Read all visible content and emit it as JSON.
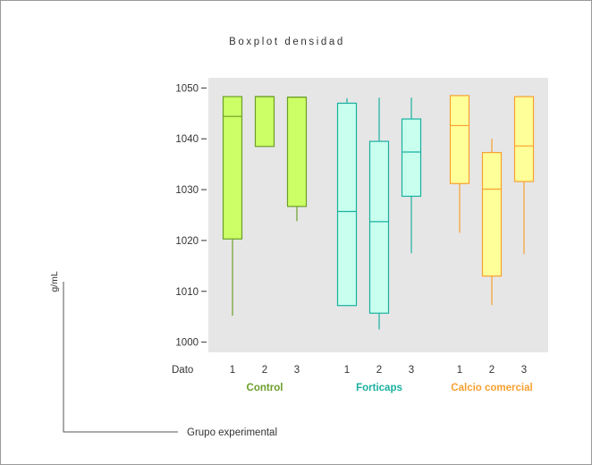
{
  "chart_data": {
    "type": "boxplot",
    "title": "Boxplot densidad",
    "ylabel": "g/mL",
    "xlabel": "Grupo experimental",
    "x_row_label": "Dato",
    "ylim": [
      998,
      1052
    ],
    "yticks": [
      1000,
      1010,
      1020,
      1030,
      1040,
      1050
    ],
    "groups": [
      {
        "name": "Control",
        "color": "#6b9e2a",
        "fill": "#ccff66",
        "boxes": [
          {
            "label": "1",
            "min": 1005.2,
            "q1": 1020.3,
            "median": 1044.4,
            "q3": 1048.3,
            "max": 1048.3
          },
          {
            "label": "2",
            "min": 1038.5,
            "q1": 1038.5,
            "median": 1048.3,
            "q3": 1048.3,
            "max": 1048.3
          },
          {
            "label": "3",
            "min": 1023.8,
            "q1": 1026.7,
            "median": 1048.2,
            "q3": 1048.2,
            "max": 1048.2
          }
        ]
      },
      {
        "name": "Forticaps",
        "color": "#1ab0a0",
        "fill": "#c8ffee",
        "boxes": [
          {
            "label": "1",
            "min": 1007.2,
            "q1": 1007.2,
            "median": 1025.7,
            "q3": 1047.0,
            "max": 1048.0
          },
          {
            "label": "2",
            "min": 1002.5,
            "q1": 1005.7,
            "median": 1023.7,
            "q3": 1039.5,
            "max": 1048.1
          },
          {
            "label": "3",
            "min": 1017.5,
            "q1": 1028.7,
            "median": 1037.4,
            "q3": 1043.9,
            "max": 1048.1
          }
        ]
      },
      {
        "name": "Calcio comercial",
        "color": "#f7a030",
        "fill": "#ffff99",
        "boxes": [
          {
            "label": "1",
            "min": 1021.5,
            "q1": 1031.2,
            "median": 1042.6,
            "q3": 1048.5,
            "max": 1048.5
          },
          {
            "label": "2",
            "min": 1007.3,
            "q1": 1013.0,
            "median": 1030.1,
            "q3": 1037.3,
            "max": 1040.0
          },
          {
            "label": "3",
            "min": 1017.3,
            "q1": 1031.6,
            "median": 1038.6,
            "q3": 1048.3,
            "max": 1048.3
          }
        ]
      }
    ],
    "grid": false,
    "plot_background": "#e6e6e6"
  }
}
